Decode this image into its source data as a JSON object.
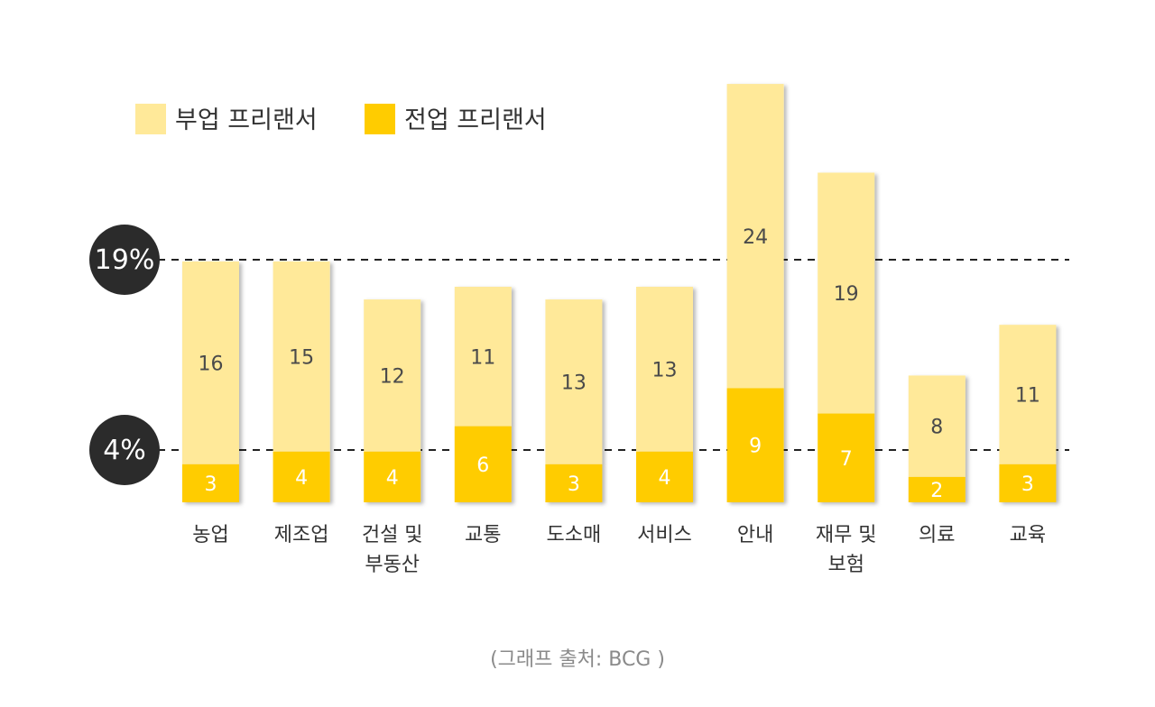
{
  "chart_data": {
    "type": "bar",
    "stacked": true,
    "categories": [
      "농업",
      "제조업",
      "건설 및 부동산",
      "교통",
      "도소매",
      "서비스",
      "안내",
      "재무 및 보험",
      "의료",
      "교육"
    ],
    "category_lines": [
      [
        "농업"
      ],
      [
        "제조업"
      ],
      [
        "건설 및",
        "부동산"
      ],
      [
        "교통"
      ],
      [
        "도소매"
      ],
      [
        "서비스"
      ],
      [
        "안내"
      ],
      [
        "재무 및",
        "보험"
      ],
      [
        "의료"
      ],
      [
        "교육"
      ]
    ],
    "series": [
      {
        "name": "전업 프리랜서",
        "values": [
          3,
          4,
          4,
          6,
          3,
          4,
          9,
          7,
          2,
          3
        ],
        "color": "#FFCC00"
      },
      {
        "name": "부업 프리랜서",
        "values": [
          16,
          15,
          12,
          11,
          13,
          13,
          24,
          19,
          8,
          11
        ],
        "color": "#FFE999"
      }
    ],
    "reference_lines": [
      {
        "label": "19%",
        "value": 19
      },
      {
        "label": "4%",
        "value": 4
      }
    ],
    "ylim": [
      0,
      34.5
    ],
    "grid": false,
    "legend_position": "top-left",
    "source": "(그래프 출처: BCG )"
  }
}
